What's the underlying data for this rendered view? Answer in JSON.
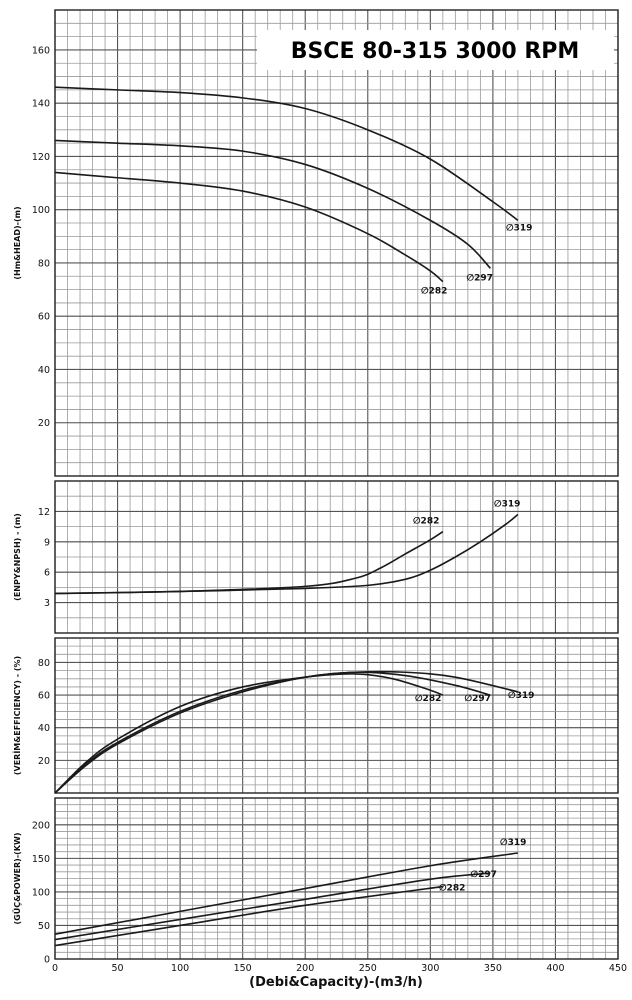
{
  "chart_data": {
    "type": "line",
    "title": "BSCE 80-315 3000 RPM",
    "xlabel": "(Debi&Capacity)-(m3/h)",
    "xlim": [
      0,
      450
    ],
    "x_ticks": [
      "0",
      "50",
      "100",
      "150",
      "200",
      "250",
      "300",
      "350",
      "400",
      "450"
    ],
    "grid": true,
    "panels": [
      {
        "id": "head",
        "ylabel": "(Hm&HEAD)-(m)",
        "ylim": [
          0,
          175
        ],
        "y_ticks": [
          20,
          40,
          60,
          80,
          100,
          120,
          140,
          160
        ],
        "series": [
          {
            "name": "∅319",
            "x": [
              0,
              50,
              100,
              150,
              200,
              250,
              300,
              350,
              370
            ],
            "y": [
              146,
              145,
              144,
              142,
              138,
              130,
              119,
              103,
              96
            ]
          },
          {
            "name": "∅297",
            "x": [
              0,
              50,
              100,
              150,
              200,
              250,
              300,
              330,
              348
            ],
            "y": [
              126,
              125,
              124,
              122,
              117,
              108,
              96,
              87,
              78
            ]
          },
          {
            "name": "∅282",
            "x": [
              0,
              50,
              100,
              150,
              200,
              250,
              280,
              300,
              310
            ],
            "y": [
              114,
              112,
              110,
              107,
              101,
              91,
              83,
              77,
              73
            ]
          }
        ]
      },
      {
        "id": "npsh",
        "ylabel": "(ENPY&NPSH) - (m)",
        "ylim": [
          0,
          15
        ],
        "y_ticks": [
          3,
          6,
          9,
          12
        ],
        "series": [
          {
            "name": "∅282",
            "x": [
              0,
              100,
              200,
              240,
              260,
              280,
              300,
              310
            ],
            "y": [
              3.9,
              4.1,
              4.6,
              5.4,
              6.4,
              7.8,
              9.2,
              10
            ]
          },
          {
            "name": "∅319",
            "x": [
              0,
              100,
              200,
              250,
              280,
              300,
              320,
              340,
              360,
              370
            ],
            "y": [
              3.9,
              4.1,
              4.4,
              4.7,
              5.3,
              6.2,
              7.5,
              9,
              10.7,
              11.7
            ]
          }
        ]
      },
      {
        "id": "efficiency",
        "ylabel": "(VERİM&EFFICIENCY) - (%)",
        "ylim": [
          0,
          95
        ],
        "y_ticks": [
          20,
          40,
          60,
          80
        ],
        "series": [
          {
            "name": "∅282",
            "x": [
              0,
              25,
              50,
              100,
              150,
              200,
              240,
              270,
              300,
              310
            ],
            "y": [
              0,
              19,
              33,
              53,
              65,
              71,
              73,
              70,
              63,
              60
            ]
          },
          {
            "name": "∅297",
            "x": [
              0,
              25,
              50,
              100,
              150,
              200,
              240,
              280,
              320,
              348
            ],
            "y": [
              0,
              18,
              31,
              50,
              63,
              71,
              74,
              72,
              66,
              60
            ]
          },
          {
            "name": "∅319",
            "x": [
              0,
              25,
              50,
              100,
              150,
              200,
              240,
              280,
              320,
              370
            ],
            "y": [
              0,
              17,
              30,
              49,
              62,
              71,
              74,
              74,
              71,
              62
            ]
          }
        ]
      },
      {
        "id": "power",
        "ylabel": "(GÜÇ&POWER)-(KW)",
        "ylim": [
          0,
          240
        ],
        "y_ticks": [
          0,
          50,
          100,
          150,
          200
        ],
        "series": [
          {
            "name": "∅319",
            "x": [
              0,
              100,
              200,
              300,
              370
            ],
            "y": [
              37,
              71,
              105,
              139,
              158
            ]
          },
          {
            "name": "∅297",
            "x": [
              0,
              100,
              200,
              300,
              348
            ],
            "y": [
              29,
              59,
              89,
              119,
              128
            ]
          },
          {
            "name": "∅282",
            "x": [
              0,
              100,
              200,
              310
            ],
            "y": [
              20,
              50,
              80,
              108
            ]
          }
        ]
      }
    ]
  }
}
